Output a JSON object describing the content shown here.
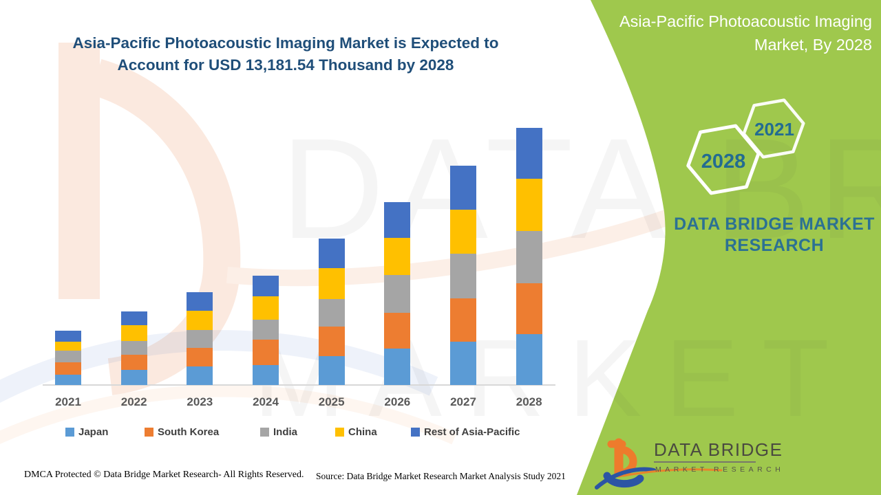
{
  "header": {
    "left_title_line1": "Asia-Pacific Photoacoustic Imaging Market is Expected to",
    "left_title_line2": "Account for USD 13,181.54 Thousand by 2028",
    "banner_title_line1": "Asia-Pacific Photoacoustic Imaging",
    "banner_title_line2": "Market, By 2028"
  },
  "banner": {
    "hexagon_large_label": "2028",
    "hexagon_small_label": "2021",
    "brand_line1": "DATA BRIDGE MARKET",
    "brand_line2": "RESEARCH",
    "green_color": "#9FC84D",
    "teal_color": "#2C7193"
  },
  "watermark": {
    "line1": "DATA BRIDGE",
    "line2": "MARKET RESEARCH"
  },
  "logo": {
    "name": "DATA BRIDGE",
    "subtitle": "MARKET RESEARCH",
    "orange": "#EE7B2C",
    "blue": "#2B55A4"
  },
  "footer": {
    "dmca": "DMCA Protected © Data Bridge Market Research- All Rights Reserved.",
    "source": "Source: Data Bridge Market Research Market Analysis Study 2021"
  },
  "chart_data": {
    "type": "bar",
    "stacked": true,
    "title": "Asia-Pacific Photoacoustic Imaging Market is Expected to Account for USD 13,181.54 Thousand by 2028",
    "units": "USD Thousand",
    "categories": [
      "2021",
      "2022",
      "2023",
      "2024",
      "2025",
      "2026",
      "2027",
      "2028"
    ],
    "series": [
      {
        "name": "Japan",
        "color": "#5B9BD5",
        "values": [
          529,
          775,
          952,
          1022,
          1480,
          1868,
          2221,
          2608
        ]
      },
      {
        "name": "South Korea",
        "color": "#ED7D31",
        "values": [
          634,
          775,
          952,
          1304,
          1516,
          1833,
          2221,
          2608
        ]
      },
      {
        "name": "India",
        "color": "#A5A5A5",
        "values": [
          599,
          705,
          916,
          1022,
          1410,
          1938,
          2291,
          2679
        ]
      },
      {
        "name": "China",
        "color": "#FFC000",
        "values": [
          458,
          811,
          987,
          1199,
          1586,
          1903,
          2256,
          2679
        ]
      },
      {
        "name": "Rest of Asia-Pacific",
        "color": "#4472C4",
        "values": [
          564,
          705,
          952,
          1057,
          1516,
          1833,
          2256,
          2608
        ]
      }
    ],
    "totals": [
      2784,
      3771,
      4759,
      5604,
      7508,
      9375,
      11245,
      13181.54
    ],
    "total_2028": 13181.54,
    "ylim": [
      0,
      13500
    ],
    "grid": false,
    "y_axis_shown": false,
    "legend_position": "bottom"
  }
}
